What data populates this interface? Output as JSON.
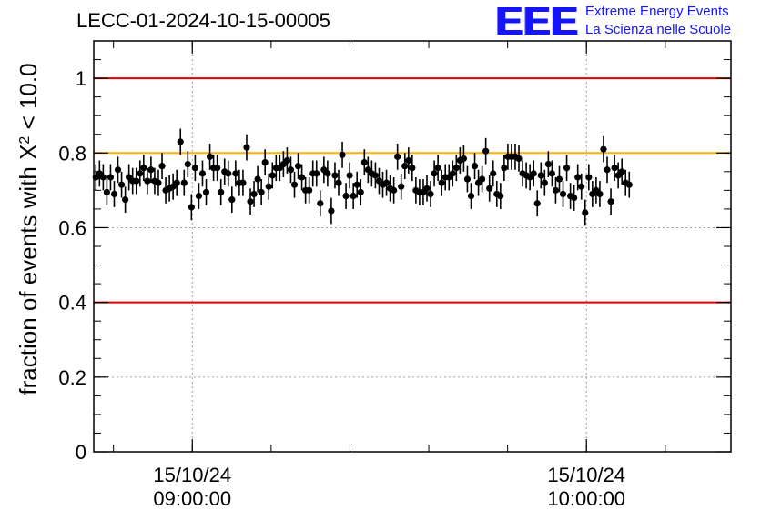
{
  "header": {
    "run_title": "LECC-01-2024-10-15-00005",
    "logo": {
      "mark": "EEE",
      "line1": "Extreme Energy Events",
      "line2": "La Scienza nelle Scuole"
    }
  },
  "colors": {
    "threshold_line": "#e00000",
    "reference_line": "#ffb000",
    "marker": "#000000",
    "grid": "#a0a0a0",
    "logo": "#1414ff"
  },
  "chart_data": {
    "type": "scatter",
    "ylabel_main": "fraction of events with ",
    "ylabel_symbol": "X",
    "ylabel_sup": "2",
    "ylabel_tail": " < 10.0",
    "ylim": [
      0,
      1.1
    ],
    "yticks": [
      0,
      0.2,
      0.4,
      0.6,
      0.8,
      1
    ],
    "ytick_labels": [
      "0",
      "0.2",
      "0.4",
      "0.6",
      "0.8",
      "1"
    ],
    "xlim": [
      "2024-10-15 08:45:00",
      "2024-10-15 10:22:00"
    ],
    "xticks": [
      {
        "x": "2024-10-15 09:00:00",
        "date": "15/10/24",
        "time": "09:00:00"
      },
      {
        "x": "2024-10-15 10:00:00",
        "date": "15/10/24",
        "time": "10:00:00"
      }
    ],
    "grid": true,
    "hlines": [
      {
        "y": 1.0,
        "color": "red"
      },
      {
        "y": 0.8,
        "color": "orange"
      },
      {
        "y": 0.4,
        "color": "red"
      }
    ],
    "series": [
      {
        "x_start": "2024-10-15 08:45:19",
        "x_step_seconds": 33.6,
        "y": [
          0.735,
          0.745,
          0.735,
          0.695,
          0.735,
          0.69,
          0.755,
          0.715,
          0.675,
          0.735,
          0.725,
          0.725,
          0.745,
          0.76,
          0.725,
          0.755,
          0.725,
          0.72,
          0.765,
          0.7,
          0.705,
          0.71,
          0.72,
          0.83,
          0.72,
          0.77,
          0.655,
          0.76,
          0.685,
          0.745,
          0.695,
          0.79,
          0.76,
          0.76,
          0.695,
          0.75,
          0.745,
          0.675,
          0.745,
          0.72,
          0.72,
          0.815,
          0.67,
          0.69,
          0.73,
          0.695,
          0.775,
          0.71,
          0.74,
          0.76,
          0.76,
          0.77,
          0.78,
          0.755,
          0.715,
          0.765,
          0.735,
          0.7,
          0.7,
          0.745,
          0.745,
          0.665,
          0.755,
          0.745,
          0.645,
          0.74,
          0.72,
          0.795,
          0.685,
          0.74,
          0.685,
          0.715,
          0.695,
          0.775,
          0.755,
          0.745,
          0.74,
          0.725,
          0.715,
          0.72,
          0.705,
          0.7,
          0.79,
          0.71,
          0.765,
          0.78,
          0.76,
          0.7,
          0.695,
          0.695,
          0.705,
          0.69,
          0.745,
          0.76,
          0.72,
          0.735,
          0.735,
          0.745,
          0.76,
          0.78,
          0.785,
          0.73,
          0.685,
          0.765,
          0.72,
          0.73,
          0.805,
          0.705,
          0.745,
          0.69,
          0.685,
          0.76,
          0.79,
          0.79,
          0.79,
          0.785,
          0.745,
          0.74,
          0.735,
          0.745,
          0.665,
          0.74,
          0.72,
          0.77,
          0.745,
          0.7,
          0.73,
          0.69,
          0.76,
          0.685,
          0.68,
          0.735,
          0.71,
          0.64,
          0.735,
          0.69,
          0.7,
          0.69,
          0.81,
          0.755,
          0.67,
          0.76,
          0.74,
          0.75,
          0.72,
          0.715
        ]
      }
    ]
  }
}
